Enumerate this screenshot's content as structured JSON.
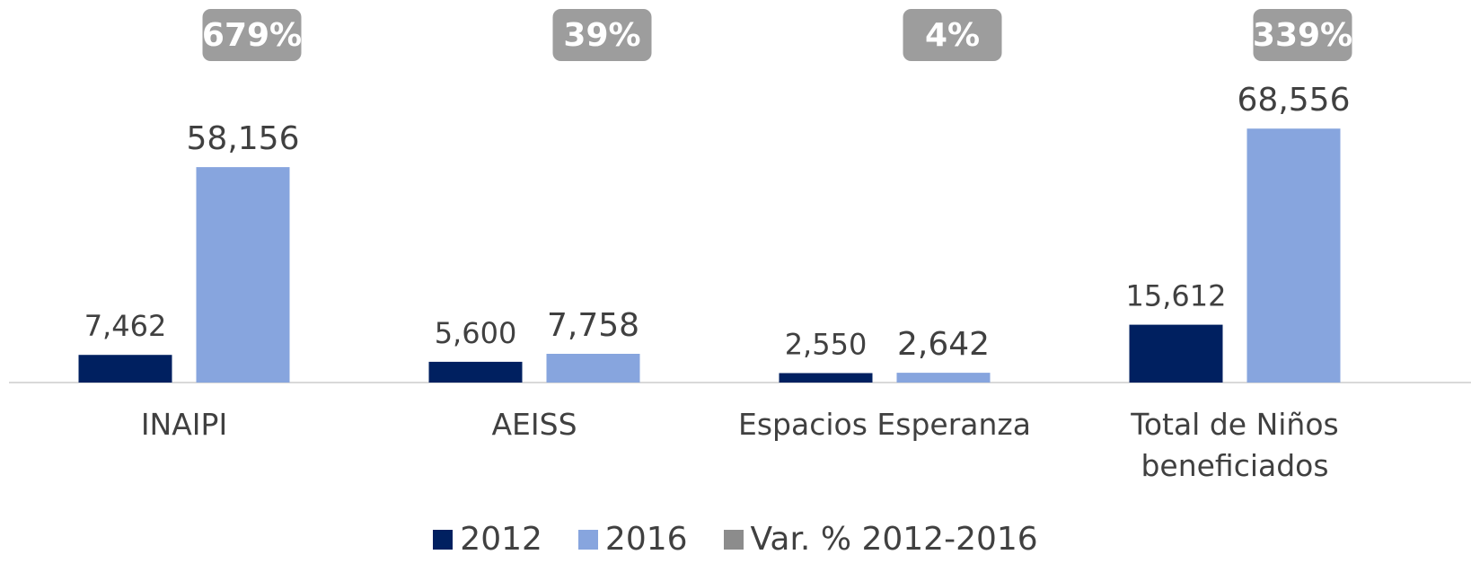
{
  "chart_data": {
    "type": "bar",
    "categories": [
      "INAIPI",
      "AEISS",
      "Espacios Esperanza",
      "Total de Niños beneficiados"
    ],
    "series": [
      {
        "name": "2012",
        "color": "#002060",
        "values": [
          7462,
          5600,
          2550,
          15612
        ],
        "value_labels": [
          "7,462",
          "5,600",
          "2,550",
          "15,612"
        ]
      },
      {
        "name": "2016",
        "color": "#87a5de",
        "values": [
          58156,
          7758,
          2642,
          68556
        ],
        "value_labels": [
          "58,156",
          "7,758",
          "2,642",
          "68,556"
        ]
      },
      {
        "name": "Var. % 2012-2016",
        "color": "#8c8c8c",
        "values": [
          679,
          39,
          4,
          339
        ],
        "value_labels": [
          "679%",
          "39%",
          "4%",
          "339%"
        ]
      }
    ],
    "ylim": [
      0,
      80000
    ],
    "legend": "bottom"
  }
}
